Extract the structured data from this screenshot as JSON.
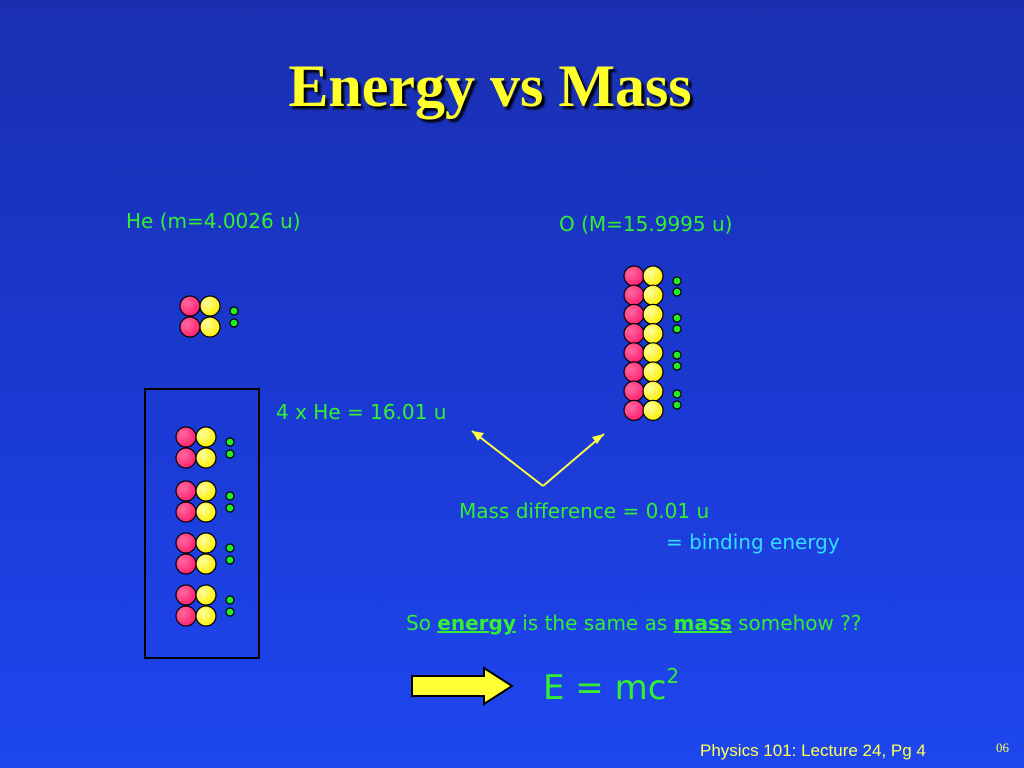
{
  "title": "Energy vs Mass",
  "he_label": "He (m=4.0026 u)",
  "o_label": "O (M=15.9995 u)",
  "sum_label": "4 x He = 16.01 u",
  "mass_difference": "Mass difference = 0.01 u",
  "binding_energy": "= binding energy",
  "statement": {
    "prefix": "So ",
    "word1": "energy",
    "middle": " is the same as ",
    "word2": "mass",
    "suffix": " somehow ??"
  },
  "formula": {
    "base": "E = mc",
    "exponent": "2"
  },
  "footer": "Physics 101: Lecture 24, Pg 4",
  "page_number": "06",
  "colors": {
    "title": "#ffff2a",
    "label_green": "#33ee33",
    "label_cyan": "#33ddff",
    "proton": "#ff1f6e",
    "neutron": "#ffff22",
    "electron": "#22ee22",
    "arrow": "#ffff44"
  },
  "icons": {
    "nucleon": "circle",
    "electron": "small-circle",
    "arrow": "right-arrow"
  }
}
